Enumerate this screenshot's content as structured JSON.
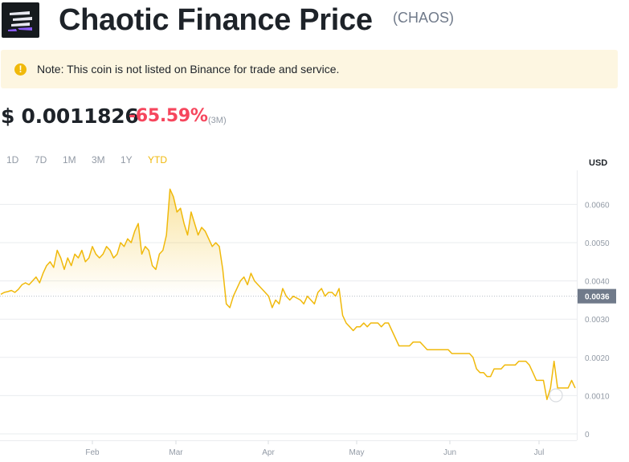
{
  "header": {
    "logo_icon": "chaotic-finance-logo",
    "title": "Chaotic Finance Price",
    "symbol": "(CHAOS)"
  },
  "note": {
    "icon": "exclamation-icon",
    "text": "Note: This coin is not listed on Binance for trade and service."
  },
  "price": {
    "value": "$ 0.0011826",
    "change": "-65.59%",
    "period": "(3M)"
  },
  "ranges": {
    "items": [
      "1D",
      "7D",
      "1M",
      "3M",
      "1Y",
      "YTD"
    ],
    "active": "YTD"
  },
  "colors": {
    "accent": "#F0B90B",
    "negative": "#F6465D",
    "line": "#F0B90B"
  },
  "chart_data": {
    "type": "area",
    "currency_label": "USD",
    "y_ticks": [
      "0",
      "0.0010",
      "0.0020",
      "0.0030",
      "0.0040",
      "0.0050",
      "0.0060"
    ],
    "x_ticks": [
      "Feb",
      "Mar",
      "Apr",
      "May",
      "Jun",
      "Jul"
    ],
    "current_value_label": "0.0036",
    "current_value": 0.0036,
    "ylim": [
      0,
      0.0063
    ],
    "grid": true,
    "series": [
      {
        "values": [
          0.00365,
          0.0037,
          0.00372,
          0.00375,
          0.0037,
          0.00378,
          0.0039,
          0.00395,
          0.0039,
          0.004,
          0.0041,
          0.00395,
          0.0042,
          0.0044,
          0.0045,
          0.00435,
          0.0048,
          0.0046,
          0.0043,
          0.0046,
          0.0044,
          0.0047,
          0.0046,
          0.0048,
          0.0045,
          0.0046,
          0.0049,
          0.0047,
          0.0046,
          0.0047,
          0.0049,
          0.0048,
          0.0046,
          0.0047,
          0.005,
          0.0049,
          0.0051,
          0.005,
          0.0053,
          0.0055,
          0.0047,
          0.0049,
          0.0048,
          0.0044,
          0.0043,
          0.0047,
          0.0048,
          0.0052,
          0.0064,
          0.0062,
          0.0058,
          0.0059,
          0.0055,
          0.0052,
          0.0058,
          0.0055,
          0.0052,
          0.0054,
          0.0053,
          0.0051,
          0.0049,
          0.005,
          0.0049,
          0.0043,
          0.0034,
          0.0033,
          0.0036,
          0.0038,
          0.004,
          0.0041,
          0.0039,
          0.0042,
          0.004,
          0.0039,
          0.0038,
          0.0037,
          0.0036,
          0.0033,
          0.0035,
          0.0034,
          0.0038,
          0.0036,
          0.0035,
          0.0036,
          0.00355,
          0.0035,
          0.0034,
          0.0036,
          0.0035,
          0.0034,
          0.0037,
          0.0038,
          0.0036,
          0.0037,
          0.0037,
          0.0036,
          0.0038,
          0.0031,
          0.0029,
          0.0028,
          0.0027,
          0.0028,
          0.0028,
          0.0029,
          0.0028,
          0.0029,
          0.0029,
          0.0029,
          0.0028,
          0.0029,
          0.0029,
          0.0027,
          0.0025,
          0.0023,
          0.0023,
          0.0023,
          0.0023,
          0.0024,
          0.0024,
          0.0024,
          0.0023,
          0.0022,
          0.0022,
          0.0022,
          0.0022,
          0.0022,
          0.0022,
          0.0022,
          0.0021,
          0.0021,
          0.0021,
          0.0021,
          0.0021,
          0.0021,
          0.002,
          0.0017,
          0.0016,
          0.0016,
          0.0015,
          0.0015,
          0.0017,
          0.0017,
          0.0017,
          0.0018,
          0.0018,
          0.0018,
          0.0018,
          0.0019,
          0.0019,
          0.0019,
          0.0018,
          0.0016,
          0.0014,
          0.0014,
          0.0014,
          0.0009,
          0.0012,
          0.0019,
          0.0012,
          0.0012,
          0.0012,
          0.0012,
          0.0014,
          0.0012
        ]
      }
    ]
  }
}
